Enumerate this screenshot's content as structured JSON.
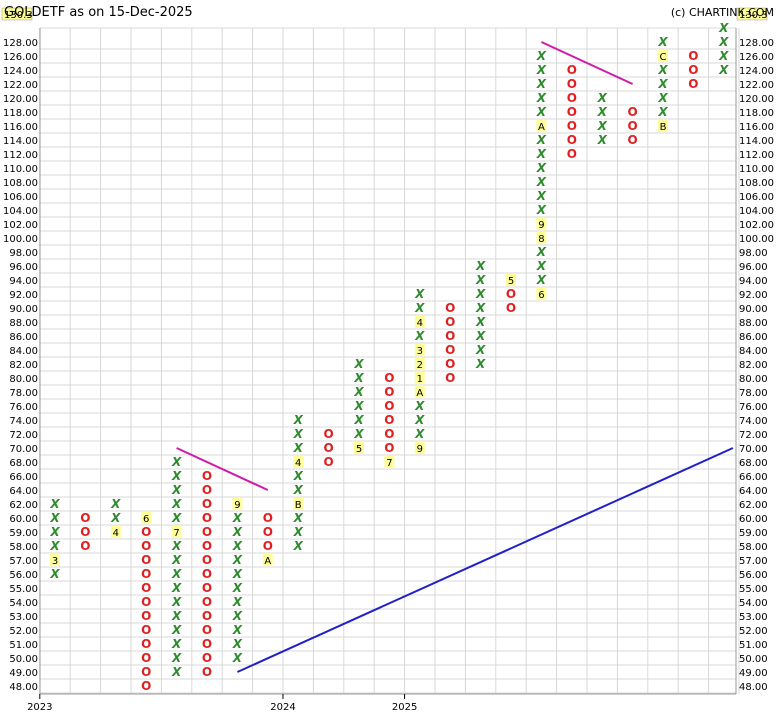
{
  "chart_data": {
    "type": "point-and-figure",
    "title": "GOLDETF as on 15-Dec-2025",
    "copyright": "(c) CHARTINK.COM",
    "last_price": "130.3",
    "y_levels": [
      48,
      49,
      50,
      51,
      52,
      53,
      54,
      55,
      56,
      57,
      58,
      59,
      60,
      62,
      64,
      66,
      68,
      70,
      72,
      74,
      76,
      78,
      80,
      82,
      84,
      86,
      88,
      90,
      92,
      94,
      96,
      98,
      100,
      102,
      104,
      106,
      108,
      110,
      112,
      114,
      116,
      118,
      120,
      122,
      124,
      126,
      128
    ],
    "x_labels": [
      {
        "label": "2023",
        "col": 0
      },
      {
        "label": "2024",
        "col": 8
      },
      {
        "label": "2025",
        "col": 12
      }
    ],
    "columns": [
      {
        "type": "X",
        "low": 56,
        "high": 62,
        "labels": {
          "57": "3"
        }
      },
      {
        "type": "O",
        "low": 58,
        "high": 60,
        "labels": {}
      },
      {
        "type": "X",
        "low": 59,
        "high": 62,
        "labels": {
          "59": "4"
        }
      },
      {
        "type": "O",
        "low": 48,
        "high": 60,
        "labels": {
          "60": "6"
        }
      },
      {
        "type": "X",
        "low": 49,
        "high": 68,
        "labels": {
          "59": "7"
        }
      },
      {
        "type": "O",
        "low": 49,
        "high": 66,
        "labels": {}
      },
      {
        "type": "X",
        "low": 50,
        "high": 62,
        "labels": {
          "62": "9"
        }
      },
      {
        "type": "O",
        "low": 57,
        "high": 60,
        "labels": {
          "57": "A"
        }
      },
      {
        "type": "X",
        "low": 58,
        "high": 74,
        "labels": {
          "62": "B",
          "68": "4"
        }
      },
      {
        "type": "O",
        "low": 68,
        "high": 72,
        "labels": {}
      },
      {
        "type": "X",
        "low": 70,
        "high": 82,
        "labels": {
          "70": "5"
        }
      },
      {
        "type": "O",
        "low": 68,
        "high": 80,
        "labels": {
          "68": "7"
        }
      },
      {
        "type": "X",
        "low": 70,
        "high": 92,
        "labels": {
          "70": "9",
          "78": "A",
          "80": "1",
          "82": "2",
          "84": "3",
          "88": "4"
        }
      },
      {
        "type": "O",
        "low": 80,
        "high": 90,
        "labels": {}
      },
      {
        "type": "X",
        "low": 82,
        "high": 96,
        "labels": {}
      },
      {
        "type": "O",
        "low": 90,
        "high": 92,
        "labels": {
          "94": "5"
        }
      },
      {
        "type": "X",
        "low": 92,
        "high": 126,
        "labels": {
          "92": "6",
          "100": "8",
          "102": "9",
          "116": "A"
        }
      },
      {
        "type": "O",
        "low": 112,
        "high": 124,
        "labels": {}
      },
      {
        "type": "X",
        "low": 114,
        "high": 120,
        "labels": {}
      },
      {
        "type": "O",
        "low": 114,
        "high": 118,
        "labels": {}
      },
      {
        "type": "X",
        "low": 116,
        "high": 128,
        "labels": {
          "116": "B",
          "126": "C"
        }
      },
      {
        "type": "O",
        "low": 122,
        "high": 126,
        "labels": {}
      },
      {
        "type": "X",
        "low": 124,
        "high": 130,
        "labels": {}
      }
    ],
    "trendlines": [
      {
        "color": "#d01aa8",
        "from": {
          "col": 4,
          "value": 70
        },
        "to": {
          "col": 7,
          "value": 64
        }
      },
      {
        "color": "#d01aa8",
        "from": {
          "col": 16,
          "value": 128
        },
        "to": {
          "col": 19,
          "value": 122
        }
      },
      {
        "color": "#2020c8",
        "from": {
          "col": 6,
          "value": 49
        },
        "to": {
          "col": 22.3,
          "value": 70
        }
      }
    ],
    "colors": {
      "x": "#2e8b2e",
      "o": "#e02020",
      "label_bg": "#ffff99",
      "grid": "#d8d8d8",
      "axis": "#000000"
    }
  }
}
